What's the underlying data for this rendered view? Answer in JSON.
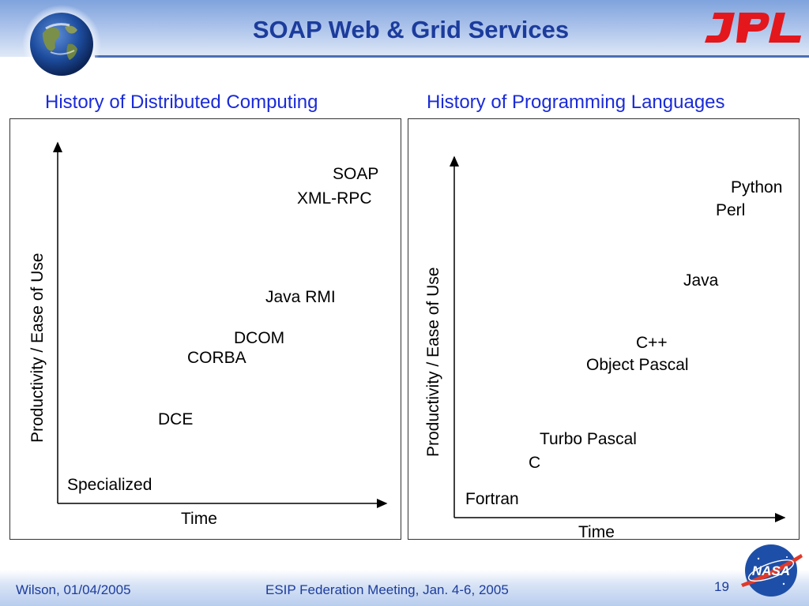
{
  "title": "SOAP Web & Grid Services",
  "left_panel": {
    "heading": "History of Distributed Computing",
    "y_axis_label": "Productivity / Ease of Use",
    "x_axis_label": "Time",
    "items": [
      "Specialized",
      "DCE",
      "CORBA",
      "DCOM",
      "Java RMI",
      "XML-RPC",
      "SOAP"
    ]
  },
  "right_panel": {
    "heading": "History of Programming Languages",
    "y_axis_label": "Productivity / Ease of Use",
    "x_axis_label": "Time",
    "items": [
      "Fortran",
      "C",
      "Turbo Pascal",
      "Object Pascal",
      "C++",
      "Java",
      "Perl",
      "Python"
    ]
  },
  "footer": {
    "author_date": "Wilson, 01/04/2005",
    "event": "ESIP Federation Meeting, Jan. 4-6, 2005",
    "page_number": "19"
  },
  "logos": {
    "jpl": "JPL",
    "nasa": "NASA"
  },
  "colors": {
    "title": "#1c3c9c",
    "heading": "#1a2bd8",
    "jpl_red": "#e3171c",
    "nasa_blue": "#1e4fa8",
    "nasa_red": "#e03a2b"
  }
}
